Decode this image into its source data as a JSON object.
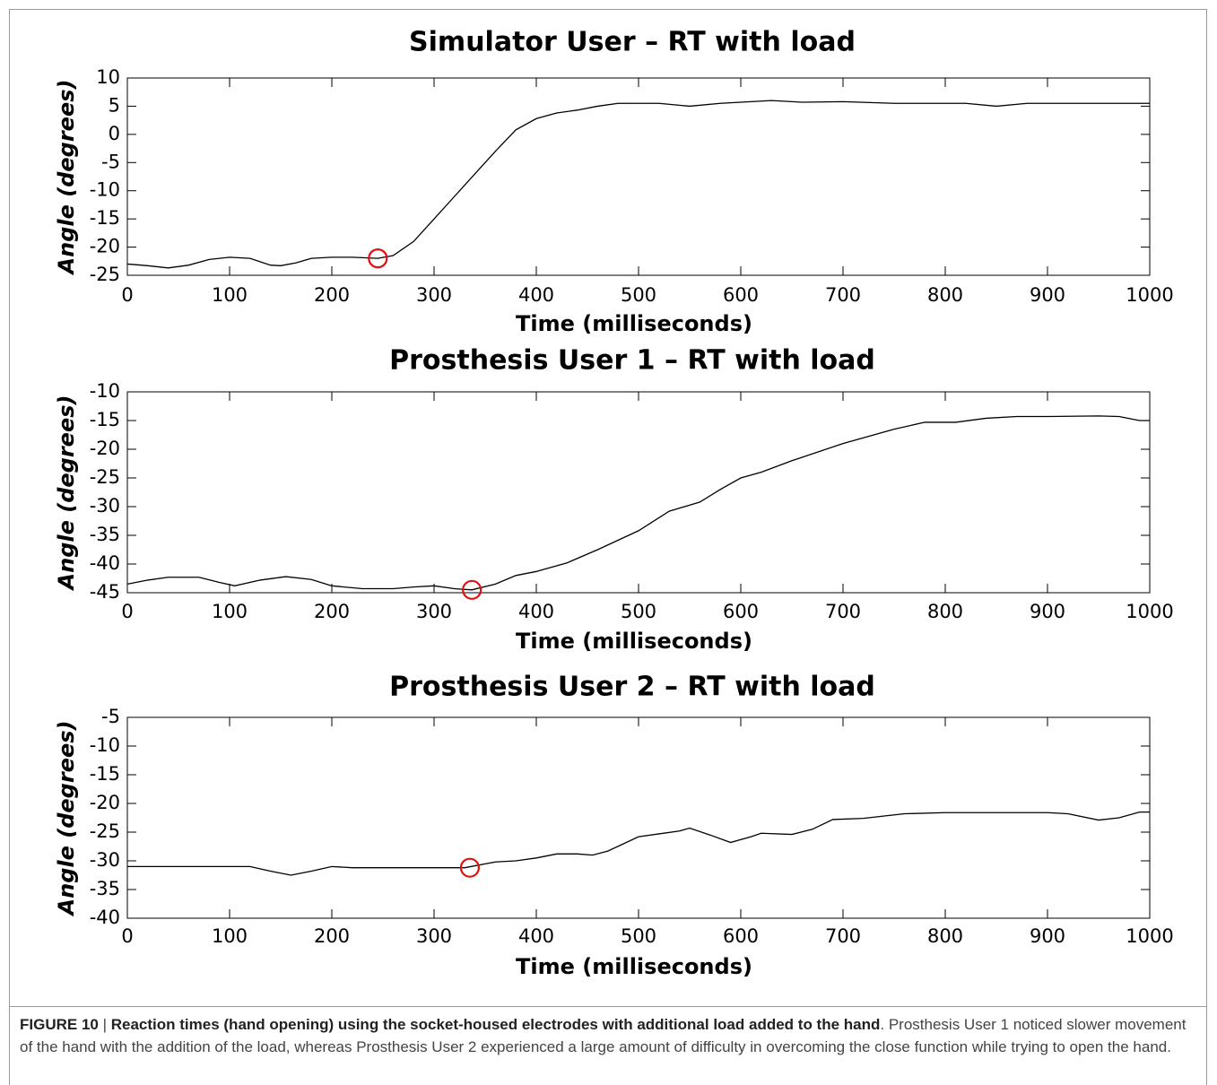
{
  "chart_data": [
    {
      "type": "line",
      "title": "Simulator User – RT with load",
      "xlabel": "Time (milliseconds)",
      "ylabel": "Angle (degrees)",
      "x": [
        0,
        20,
        40,
        60,
        80,
        100,
        120,
        140,
        150,
        165,
        180,
        200,
        220,
        245,
        260,
        280,
        300,
        320,
        340,
        360,
        380,
        400,
        420,
        440,
        460,
        480,
        500,
        520,
        550,
        580,
        600,
        630,
        660,
        700,
        750,
        800,
        820,
        850,
        880,
        900,
        950,
        1000
      ],
      "values": [
        -23,
        -23.3,
        -23.7,
        -23.2,
        -22.2,
        -21.8,
        -22,
        -23.2,
        -23.3,
        -22.8,
        -22,
        -21.8,
        -21.8,
        -22,
        -21.5,
        -19,
        -15,
        -11,
        -7,
        -3,
        0.8,
        2.8,
        3.8,
        4.3,
        5,
        5.5,
        5.5,
        5.5,
        5,
        5.5,
        5.7,
        6,
        5.7,
        5.8,
        5.5,
        5.5,
        5.5,
        5,
        5.5,
        5.5,
        5.5,
        5.5
      ],
      "color": "#000000",
      "marker": {
        "x": 245,
        "y": -22,
        "color": "#e01010"
      },
      "xlim": [
        0,
        1000
      ],
      "xticks": [
        0,
        100,
        200,
        300,
        400,
        500,
        600,
        700,
        800,
        900,
        1000
      ],
      "ylim": [
        -25,
        10
      ],
      "yticks": [
        10,
        5,
        0,
        -5,
        -10,
        -15,
        -20,
        -25
      ]
    },
    {
      "type": "line",
      "title": "Prosthesis User 1 – RT with load",
      "xlabel": "Time (milliseconds)",
      "ylabel": "Angle (degrees)",
      "x": [
        0,
        20,
        40,
        70,
        90,
        105,
        130,
        155,
        180,
        200,
        230,
        260,
        280,
        300,
        320,
        337,
        360,
        380,
        400,
        430,
        460,
        500,
        530,
        560,
        580,
        600,
        620,
        650,
        700,
        750,
        780,
        810,
        840,
        870,
        900,
        950,
        970,
        990,
        1000
      ],
      "values": [
        -43.5,
        -42.8,
        -42.3,
        -42.3,
        -43.2,
        -43.8,
        -42.8,
        -42.2,
        -42.7,
        -43.8,
        -44.3,
        -44.3,
        -44,
        -43.8,
        -44.3,
        -44.5,
        -43.5,
        -42,
        -41.3,
        -39.8,
        -37.5,
        -34.2,
        -30.8,
        -29.2,
        -27,
        -25,
        -24,
        -22,
        -19,
        -16.5,
        -15.3,
        -15.3,
        -14.6,
        -14.3,
        -14.3,
        -14.2,
        -14.3,
        -15,
        -15
      ],
      "color": "#000000",
      "marker": {
        "x": 337,
        "y": -44.5,
        "color": "#e01010"
      },
      "xlim": [
        0,
        1000
      ],
      "xticks": [
        0,
        100,
        200,
        300,
        400,
        500,
        600,
        700,
        800,
        900,
        1000
      ],
      "ylim": [
        -45,
        -10
      ],
      "yticks": [
        -10,
        -15,
        -20,
        -25,
        -30,
        -35,
        -40,
        -45
      ]
    },
    {
      "type": "line",
      "title": "Prosthesis User 2 – RT with load",
      "xlabel": "Time (milliseconds)",
      "ylabel": "Angle (degrees)",
      "x": [
        0,
        120,
        140,
        160,
        180,
        200,
        220,
        330,
        360,
        380,
        400,
        420,
        440,
        455,
        470,
        500,
        520,
        540,
        550,
        570,
        590,
        610,
        620,
        650,
        670,
        690,
        720,
        760,
        800,
        900,
        920,
        950,
        970,
        990,
        1000
      ],
      "values": [
        -31,
        -31,
        -31.8,
        -32.5,
        -31.8,
        -31,
        -31.2,
        -31.2,
        -30.2,
        -30,
        -29.5,
        -28.8,
        -28.8,
        -29,
        -28.3,
        -25.8,
        -25.3,
        -24.8,
        -24.3,
        -25.5,
        -26.8,
        -25.8,
        -25.2,
        -25.4,
        -24.5,
        -22.8,
        -22.6,
        -21.8,
        -21.6,
        -21.6,
        -21.8,
        -22.9,
        -22.5,
        -21.5,
        -21.5
      ],
      "color": "#000000",
      "marker": {
        "x": 335,
        "y": -31.2,
        "color": "#e01010"
      },
      "xlim": [
        0,
        1000
      ],
      "xticks": [
        0,
        100,
        200,
        300,
        400,
        500,
        600,
        700,
        800,
        900,
        1000
      ],
      "ylim": [
        -40,
        -5
      ],
      "yticks": [
        -5,
        -10,
        -15,
        -20,
        -25,
        -30,
        -35,
        -40
      ]
    }
  ],
  "caption": {
    "label": "FIGURE 10",
    "separator": "|",
    "title": "Reaction times (hand opening) using the socket-housed electrodes with additional load added to the hand",
    "text": ". Prosthesis User 1 noticed slower movement of the hand with the addition of the load, whereas Prosthesis User 2 experienced a large amount of difficulty in overcoming the close function while trying to open the hand."
  }
}
